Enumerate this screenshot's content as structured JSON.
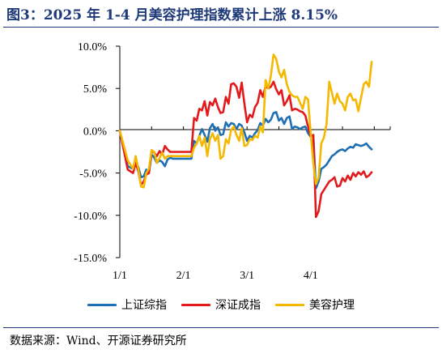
{
  "title": "图3：2025 年 1-4 月美容护理指数累计上涨 8.15%",
  "source": "数据来源：Wind、开源证券研究所",
  "colors": {
    "title": "#1f3a78"
  },
  "chart_data": {
    "type": "line",
    "ylim": [
      -15,
      10
    ],
    "yticks": [
      10,
      5,
      0,
      -5,
      -10,
      -15
    ],
    "ytick_labels": [
      "10.0%",
      "5.0%",
      "0.0%",
      "-5.0%",
      "-10.0%",
      "-15.0%"
    ],
    "xlim": [
      0,
      102
    ],
    "xtick_positions": [
      0,
      24,
      48,
      72
    ],
    "xtick_labels": [
      "1/1",
      "2/1",
      "3/1",
      "4/1"
    ],
    "grid": false,
    "legend_position": "bottom",
    "series": [
      {
        "name": "上证综指",
        "color": "#1f6fb5",
        "points": [
          [
            0,
            0
          ],
          [
            3,
            -4.2
          ],
          [
            5,
            -4.5
          ],
          [
            6,
            -3.8
          ],
          [
            7,
            -4.3
          ],
          [
            8,
            -5.5
          ],
          [
            9,
            -5.4
          ],
          [
            10,
            -4.6
          ],
          [
            11,
            -5.0
          ],
          [
            12,
            -2.8
          ],
          [
            13,
            -3.2
          ],
          [
            14,
            -3.8
          ],
          [
            15,
            -3.5
          ],
          [
            16,
            -3.7
          ],
          [
            17,
            -4.2
          ],
          [
            18,
            -3.4
          ],
          [
            19,
            -3.2
          ],
          [
            20,
            -3.3
          ],
          [
            21,
            -3.3
          ],
          [
            22,
            -3.3
          ],
          [
            23,
            -3.3
          ],
          [
            24,
            -3.3
          ],
          [
            25,
            -3.3
          ],
          [
            26,
            -3.3
          ],
          [
            27,
            -3.3
          ],
          [
            28,
            -1.2
          ],
          [
            29,
            -1.5
          ],
          [
            30,
            -0.6
          ],
          [
            31,
            0.2
          ],
          [
            32,
            -0.5
          ],
          [
            33,
            -1.3
          ],
          [
            34,
            0.3
          ],
          [
            35,
            0.8
          ],
          [
            36,
            0.0
          ],
          [
            37,
            0.4
          ],
          [
            38,
            -0.5
          ],
          [
            39,
            -0.4
          ],
          [
            40,
            1.0
          ],
          [
            41,
            0.5
          ],
          [
            42,
            0.9
          ],
          [
            43,
            0.8
          ],
          [
            44,
            0.2
          ],
          [
            45,
            0.8
          ],
          [
            46,
            0.6
          ],
          [
            47,
            -0.2
          ],
          [
            48,
            -1.2
          ],
          [
            49,
            -0.6
          ],
          [
            50,
            -0.8
          ],
          [
            51,
            -0.3
          ],
          [
            52,
            0.1
          ],
          [
            53,
            0.9
          ],
          [
            54,
            0.6
          ],
          [
            55,
            1.4
          ],
          [
            56,
            1.0
          ],
          [
            57,
            1.3
          ],
          [
            58,
            2.1
          ],
          [
            59,
            2.2
          ],
          [
            60,
            1.2
          ],
          [
            61,
            1.5
          ],
          [
            62,
            0.8
          ],
          [
            63,
            1.5
          ],
          [
            64,
            1.7
          ],
          [
            65,
            0.2
          ],
          [
            66,
            0.5
          ],
          [
            67,
            0.4
          ],
          [
            68,
            0.2
          ],
          [
            69,
            0.4
          ],
          [
            70,
            0.5
          ],
          [
            71,
            -0.3
          ],
          [
            72,
            -0.7
          ],
          [
            73,
            -0.5
          ],
          [
            74,
            -6.8
          ],
          [
            75,
            -6.0
          ],
          [
            76,
            -4.5
          ],
          [
            77,
            -4.3
          ],
          [
            78,
            -4.0
          ],
          [
            79,
            -3.5
          ],
          [
            80,
            -3.0
          ],
          [
            81,
            -2.8
          ],
          [
            82,
            -2.5
          ],
          [
            83,
            -2.3
          ],
          [
            84,
            -2.2
          ],
          [
            85,
            -2.4
          ],
          [
            86,
            -2.1
          ],
          [
            87,
            -1.9
          ],
          [
            88,
            -2.0
          ],
          [
            89,
            -1.6
          ],
          [
            90,
            -1.7
          ],
          [
            91,
            -1.8
          ],
          [
            92,
            -1.7
          ],
          [
            93,
            -1.5
          ],
          [
            94,
            -1.9
          ],
          [
            95,
            -2.2
          ]
        ]
      },
      {
        "name": "深证成指",
        "color": "#e31a1c",
        "points": [
          [
            0,
            0
          ],
          [
            3,
            -4.6
          ],
          [
            5,
            -5.0
          ],
          [
            6,
            -3.8
          ],
          [
            7,
            -4.8
          ],
          [
            8,
            -6.4
          ],
          [
            9,
            -6.0
          ],
          [
            10,
            -5.2
          ],
          [
            11,
            -5.0
          ],
          [
            12,
            -2.3
          ],
          [
            13,
            -2.6
          ],
          [
            14,
            -3.0
          ],
          [
            15,
            -2.4
          ],
          [
            16,
            -2.8
          ],
          [
            17,
            -1.8
          ],
          [
            18,
            -2.2
          ],
          [
            19,
            -2.5
          ],
          [
            20,
            -2.5
          ],
          [
            21,
            -2.5
          ],
          [
            22,
            -2.5
          ],
          [
            23,
            -2.5
          ],
          [
            24,
            -2.5
          ],
          [
            25,
            -2.5
          ],
          [
            26,
            -2.5
          ],
          [
            27,
            -2.5
          ],
          [
            28,
            1.5
          ],
          [
            29,
            1.2
          ],
          [
            30,
            2.6
          ],
          [
            31,
            2.4
          ],
          [
            32,
            3.5
          ],
          [
            33,
            1.8
          ],
          [
            34,
            3.4
          ],
          [
            35,
            3.0
          ],
          [
            36,
            3.8
          ],
          [
            37,
            2.8
          ],
          [
            38,
            2.1
          ],
          [
            39,
            2.2
          ],
          [
            40,
            4.0
          ],
          [
            41,
            3.2
          ],
          [
            42,
            5.5
          ],
          [
            43,
            5.6
          ],
          [
            44,
            5.2
          ],
          [
            45,
            3.9
          ],
          [
            46,
            5.7
          ],
          [
            47,
            3.2
          ],
          [
            48,
            1.0
          ],
          [
            49,
            1.9
          ],
          [
            50,
            1.6
          ],
          [
            51,
            2.8
          ],
          [
            52,
            3.3
          ],
          [
            53,
            4.8
          ],
          [
            54,
            4.0
          ],
          [
            55,
            5.3
          ],
          [
            56,
            5.0
          ],
          [
            57,
            5.2
          ],
          [
            58,
            5.8
          ],
          [
            59,
            4.9
          ],
          [
            60,
            4.3
          ],
          [
            61,
            4.8
          ],
          [
            62,
            3.0
          ],
          [
            63,
            3.5
          ],
          [
            64,
            4.2
          ],
          [
            65,
            2.4
          ],
          [
            66,
            2.6
          ],
          [
            67,
            2.5
          ],
          [
            68,
            2.3
          ],
          [
            69,
            2.2
          ],
          [
            70,
            1.8
          ],
          [
            71,
            0.5
          ],
          [
            72,
            -0.7
          ],
          [
            73,
            -0.5
          ],
          [
            74,
            -10.2
          ],
          [
            75,
            -9.5
          ],
          [
            76,
            -7.5
          ],
          [
            77,
            -7.0
          ],
          [
            78,
            -6.5
          ],
          [
            79,
            -6.0
          ],
          [
            80,
            -5.8
          ],
          [
            81,
            -5.5
          ],
          [
            82,
            -6.6
          ],
          [
            83,
            -6.5
          ],
          [
            84,
            -5.6
          ],
          [
            85,
            -6.0
          ],
          [
            86,
            -5.3
          ],
          [
            87,
            -5.8
          ],
          [
            88,
            -5.0
          ],
          [
            89,
            -5.4
          ],
          [
            90,
            -4.9
          ],
          [
            91,
            -5.2
          ],
          [
            92,
            -4.8
          ],
          [
            93,
            -5.5
          ],
          [
            94,
            -5.3
          ],
          [
            95,
            -4.9
          ]
        ]
      },
      {
        "name": "美容护理",
        "color": "#f5b800",
        "points": [
          [
            0,
            0
          ],
          [
            3,
            -3.5
          ],
          [
            5,
            -4.5
          ],
          [
            6,
            -3.0
          ],
          [
            7,
            -4.5
          ],
          [
            8,
            -6.6
          ],
          [
            9,
            -6.7
          ],
          [
            10,
            -5.0
          ],
          [
            11,
            -4.5
          ],
          [
            12,
            -2.3
          ],
          [
            13,
            -2.5
          ],
          [
            14,
            -3.8
          ],
          [
            15,
            -3.2
          ],
          [
            16,
            -2.6
          ],
          [
            17,
            -3.3
          ],
          [
            18,
            -3.0
          ],
          [
            19,
            -3.0
          ],
          [
            20,
            -3.0
          ],
          [
            21,
            -3.0
          ],
          [
            22,
            -3.0
          ],
          [
            23,
            -3.0
          ],
          [
            24,
            -3.0
          ],
          [
            25,
            -3.0
          ],
          [
            26,
            -3.0
          ],
          [
            27,
            -3.0
          ],
          [
            28,
            -2.0
          ],
          [
            29,
            -1.5
          ],
          [
            30,
            -0.6
          ],
          [
            31,
            -1.8
          ],
          [
            32,
            -0.8
          ],
          [
            33,
            -3.0
          ],
          [
            34,
            -1.0
          ],
          [
            35,
            -0.3
          ],
          [
            36,
            -1.2
          ],
          [
            37,
            -0.5
          ],
          [
            38,
            -3.3
          ],
          [
            39,
            -3.0
          ],
          [
            40,
            -1.0
          ],
          [
            41,
            -1.5
          ],
          [
            42,
            0.1
          ],
          [
            43,
            0.5
          ],
          [
            44,
            -0.5
          ],
          [
            45,
            -1.2
          ],
          [
            46,
            0.3
          ],
          [
            47,
            -1.8
          ],
          [
            48,
            -1.7
          ],
          [
            49,
            -1.0
          ],
          [
            50,
            -1.1
          ],
          [
            51,
            -0.6
          ],
          [
            52,
            -0.8
          ],
          [
            53,
            0.5
          ],
          [
            54,
            -0.2
          ],
          [
            55,
            6.0
          ],
          [
            56,
            5.0
          ],
          [
            57,
            6.5
          ],
          [
            58,
            9.0
          ],
          [
            59,
            8.5
          ],
          [
            60,
            7.0
          ],
          [
            61,
            6.3
          ],
          [
            62,
            7.2
          ],
          [
            63,
            5.5
          ],
          [
            64,
            4.6
          ],
          [
            65,
            4.2
          ],
          [
            66,
            4.0
          ],
          [
            67,
            4.0
          ],
          [
            68,
            3.3
          ],
          [
            69,
            2.6
          ],
          [
            70,
            4.0
          ],
          [
            71,
            3.7
          ],
          [
            72,
            -0.3
          ],
          [
            73,
            -3.8
          ],
          [
            74,
            -6.3
          ],
          [
            75,
            -5.5
          ],
          [
            76,
            -1.5
          ],
          [
            77,
            -0.8
          ],
          [
            78,
            0.8
          ],
          [
            79,
            5.8
          ],
          [
            80,
            4.5
          ],
          [
            81,
            3.2
          ],
          [
            82,
            4.4
          ],
          [
            83,
            3.5
          ],
          [
            84,
            3.2
          ],
          [
            85,
            2.4
          ],
          [
            86,
            4.0
          ],
          [
            87,
            4.4
          ],
          [
            88,
            3.6
          ],
          [
            89,
            3.7
          ],
          [
            90,
            2.3
          ],
          [
            91,
            3.9
          ],
          [
            92,
            5.5
          ],
          [
            93,
            5.8
          ],
          [
            94,
            5.2
          ],
          [
            95,
            8.15
          ]
        ]
      }
    ]
  }
}
